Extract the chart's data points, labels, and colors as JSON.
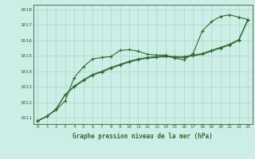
{
  "xlabel": "Graphe pression niveau de la mer (hPa)",
  "background_color": "#cdeee6",
  "line_color": "#2d6b2d",
  "grid_color": "#a8d8c8",
  "x_ticks": [
    0,
    1,
    2,
    3,
    4,
    5,
    6,
    7,
    8,
    9,
    10,
    11,
    12,
    13,
    14,
    15,
    16,
    17,
    18,
    19,
    20,
    21,
    22,
    23
  ],
  "y_ticks": [
    1011,
    1012,
    1013,
    1014,
    1015,
    1016,
    1017,
    1018
  ],
  "ylim": [
    1010.6,
    1018.3
  ],
  "xlim": [
    -0.5,
    23.5
  ],
  "line1_x": [
    0,
    1,
    2,
    3,
    4,
    5,
    6,
    7,
    8,
    9,
    10,
    11,
    12,
    13,
    14,
    15,
    16,
    17,
    18,
    19,
    20,
    21,
    22,
    23
  ],
  "line1_y": [
    1010.8,
    1011.1,
    1011.5,
    1012.1,
    1013.6,
    1014.3,
    1014.8,
    1014.9,
    1014.95,
    1015.35,
    1015.4,
    1015.3,
    1015.1,
    1015.05,
    1015.05,
    1014.85,
    1014.75,
    1015.15,
    1016.6,
    1017.2,
    1017.55,
    1017.65,
    1017.5,
    1017.35
  ],
  "line2_x": [
    0,
    1,
    2,
    3,
    4,
    5,
    6,
    7,
    8,
    9,
    10,
    11,
    12,
    13,
    14,
    15,
    16,
    17,
    18,
    19,
    20,
    21,
    22,
    23
  ],
  "line2_y": [
    1010.8,
    1011.1,
    1011.55,
    1012.5,
    1013.0,
    1013.4,
    1013.75,
    1013.95,
    1014.2,
    1014.4,
    1014.6,
    1014.75,
    1014.85,
    1014.9,
    1014.95,
    1014.9,
    1014.9,
    1015.0,
    1015.1,
    1015.3,
    1015.5,
    1015.7,
    1016.0,
    1017.3
  ],
  "line3_x": [
    0,
    1,
    2,
    3,
    4,
    5,
    6,
    7,
    8,
    9,
    10,
    11,
    12,
    13,
    14,
    15,
    16,
    17,
    18,
    19,
    20,
    21,
    22,
    23
  ],
  "line3_y": [
    1010.8,
    1011.1,
    1011.55,
    1012.5,
    1013.05,
    1013.45,
    1013.8,
    1014.0,
    1014.25,
    1014.45,
    1014.65,
    1014.8,
    1014.9,
    1014.95,
    1015.0,
    1014.95,
    1014.95,
    1015.05,
    1015.15,
    1015.35,
    1015.55,
    1015.75,
    1016.05,
    1017.35
  ]
}
